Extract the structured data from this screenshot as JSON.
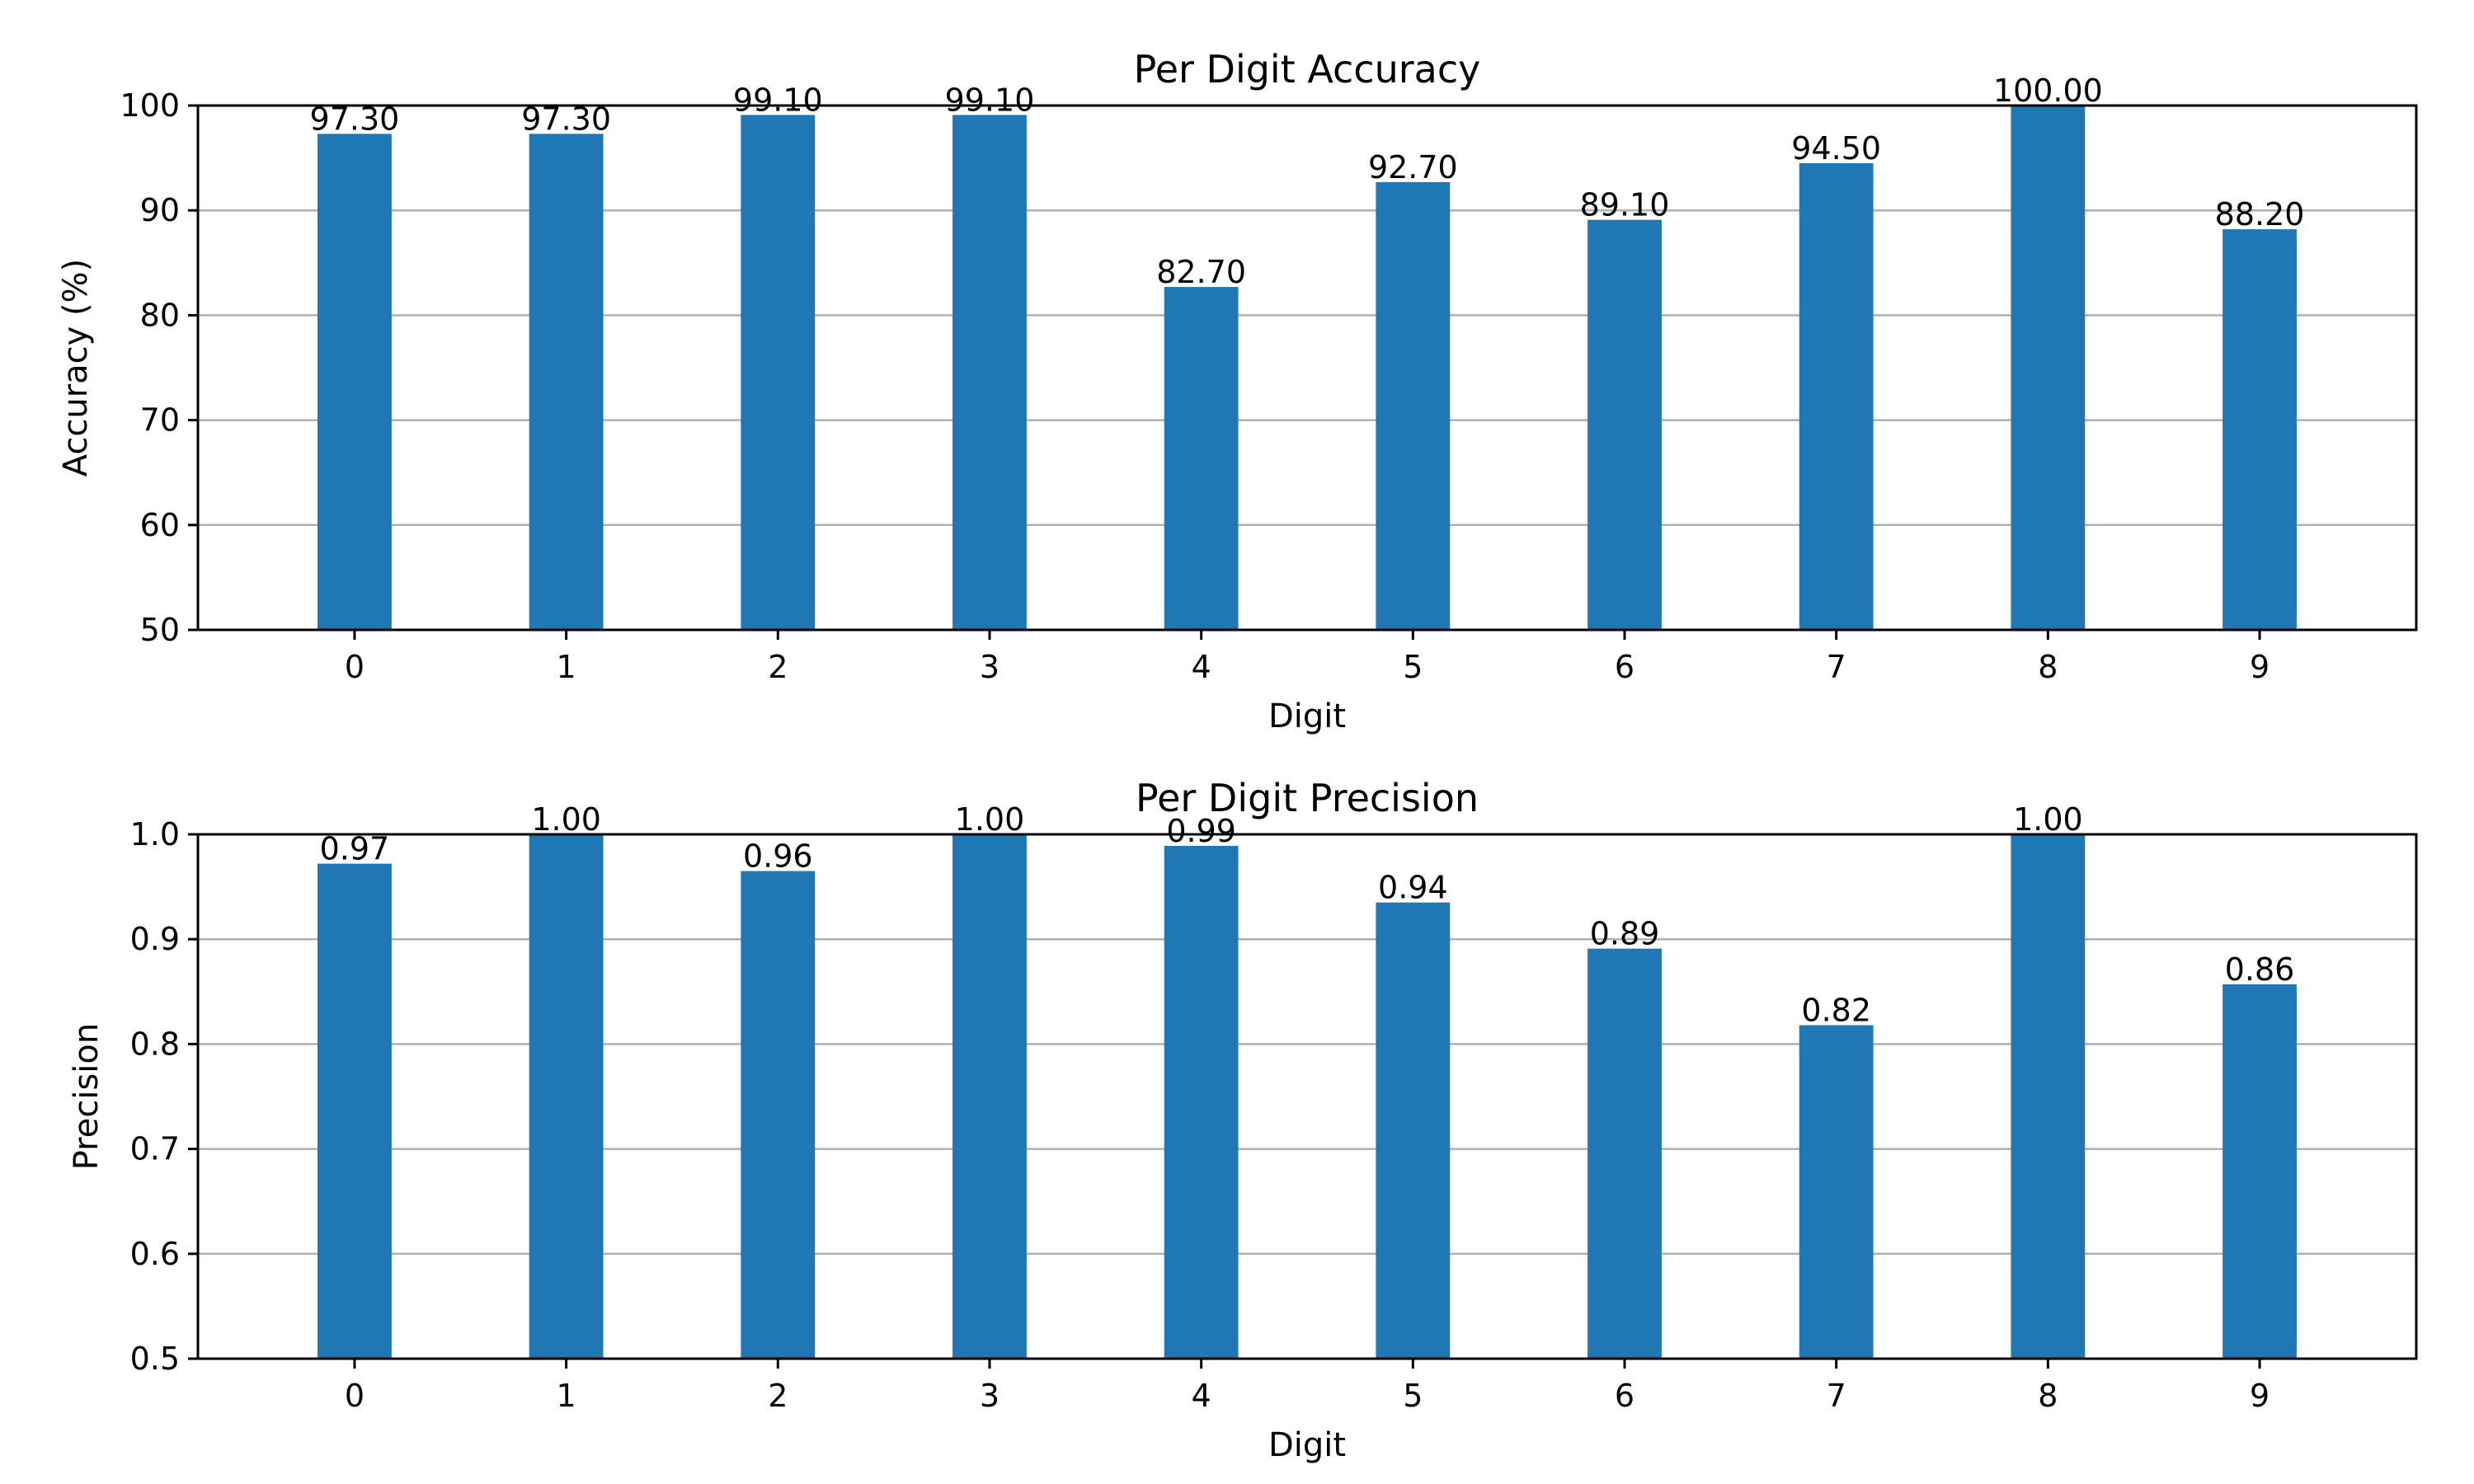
{
  "chart_data": [
    {
      "type": "bar",
      "title": "Per Digit Accuracy",
      "xlabel": "Digit",
      "ylabel": "Accuracy (%)",
      "categories": [
        "0",
        "1",
        "2",
        "3",
        "4",
        "5",
        "6",
        "7",
        "8",
        "9"
      ],
      "values": [
        97.3,
        97.3,
        99.1,
        99.1,
        82.7,
        92.7,
        89.1,
        94.5,
        100.0,
        88.2
      ],
      "data_labels": [
        "97.30",
        "97.30",
        "99.10",
        "99.10",
        "82.70",
        "92.70",
        "89.10",
        "94.50",
        "100.00",
        "88.20"
      ],
      "ylim": [
        50,
        100
      ],
      "yticks": [
        50,
        60,
        70,
        80,
        90,
        100
      ],
      "ytick_labels": [
        "50",
        "60",
        "70",
        "80",
        "90",
        "100"
      ],
      "grid": "y",
      "bar_color": "#1f77b4"
    },
    {
      "type": "bar",
      "title": "Per Digit Precision",
      "xlabel": "Digit",
      "ylabel": "Precision",
      "categories": [
        "0",
        "1",
        "2",
        "3",
        "4",
        "5",
        "6",
        "7",
        "8",
        "9"
      ],
      "values": [
        0.972,
        1.0,
        0.965,
        1.0,
        0.989,
        0.935,
        0.891,
        0.818,
        1.0,
        0.857
      ],
      "data_labels": [
        "0.97",
        "1.00",
        "0.96",
        "1.00",
        "0.99",
        "0.94",
        "0.89",
        "0.82",
        "1.00",
        "0.86"
      ],
      "ylim": [
        0.5,
        1.0
      ],
      "yticks": [
        0.5,
        0.6,
        0.7,
        0.8,
        0.9,
        1.0
      ],
      "ytick_labels": [
        "0.5",
        "0.6",
        "0.7",
        "0.8",
        "0.9",
        "1.0"
      ],
      "grid": "y",
      "bar_color": "#1f77b4"
    }
  ]
}
